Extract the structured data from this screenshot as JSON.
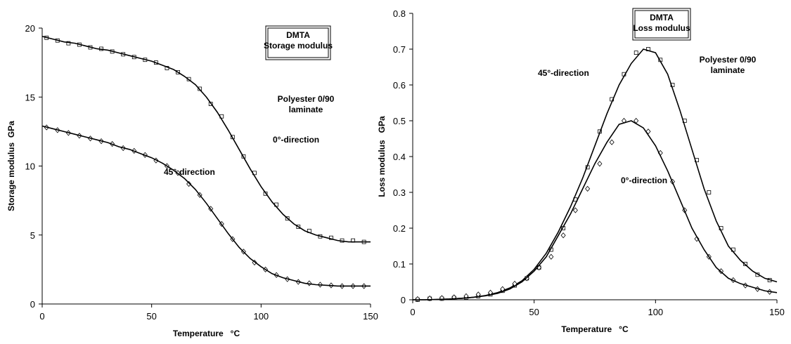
{
  "chart_data": [
    {
      "type": "scatter-fit",
      "xlabel": "Temperature   °C",
      "ylabel": "Storage modulus  GPa",
      "box": [
        "DMTA",
        "Storage modulus"
      ],
      "annotations": [
        "Polyester 0/90",
        "laminate",
        "0°-direction",
        "45°-direction"
      ],
      "xlim": [
        0,
        150
      ],
      "xticks": [
        0,
        50,
        100,
        150
      ],
      "ylim": [
        0,
        20
      ],
      "yticks": [
        0,
        5,
        10,
        15,
        20
      ],
      "series": [
        {
          "marker": "square",
          "color": "#000000",
          "x": [
            2,
            7,
            12,
            17,
            22,
            27,
            32,
            37,
            42,
            47,
            52,
            57,
            62,
            67,
            72,
            77,
            82,
            87,
            92,
            97,
            102,
            107,
            112,
            117,
            122,
            127,
            132,
            137,
            142,
            147
          ],
          "values": [
            19.3,
            19.1,
            18.9,
            18.8,
            18.6,
            18.5,
            18.3,
            18.1,
            17.9,
            17.7,
            17.5,
            17.1,
            16.8,
            16.3,
            15.6,
            14.5,
            13.6,
            12.1,
            10.7,
            9.5,
            8.0,
            7.2,
            6.2,
            5.6,
            5.3,
            4.9,
            4.8,
            4.6,
            4.6,
            4.5
          ]
        },
        {
          "marker": "line",
          "color": "#000000",
          "x": [
            0,
            5,
            10,
            15,
            20,
            25,
            30,
            35,
            40,
            45,
            50,
            55,
            60,
            65,
            70,
            75,
            80,
            85,
            90,
            95,
            100,
            105,
            110,
            115,
            120,
            125,
            130,
            135,
            140,
            145,
            150
          ],
          "values": [
            19.4,
            19.2,
            19.0,
            18.9,
            18.7,
            18.5,
            18.4,
            18.2,
            18.0,
            17.8,
            17.6,
            17.3,
            17.0,
            16.5,
            15.9,
            15.0,
            13.9,
            12.6,
            11.2,
            9.8,
            8.5,
            7.4,
            6.5,
            5.8,
            5.3,
            5.0,
            4.8,
            4.6,
            4.5,
            4.5,
            4.5
          ]
        },
        {
          "marker": "diamond",
          "color": "#000000",
          "x": [
            2,
            7,
            12,
            17,
            22,
            27,
            32,
            37,
            42,
            47,
            52,
            57,
            62,
            67,
            72,
            77,
            82,
            87,
            92,
            97,
            102,
            107,
            112,
            117,
            122,
            127,
            132,
            137,
            142,
            147
          ],
          "values": [
            12.8,
            12.6,
            12.4,
            12.2,
            12.0,
            11.8,
            11.6,
            11.3,
            11.1,
            10.8,
            10.4,
            10.0,
            9.5,
            8.7,
            7.9,
            6.9,
            5.8,
            4.7,
            3.8,
            3.0,
            2.5,
            2.1,
            1.8,
            1.6,
            1.5,
            1.4,
            1.35,
            1.3,
            1.3,
            1.3
          ]
        },
        {
          "marker": "line",
          "color": "#000000",
          "x": [
            0,
            5,
            10,
            15,
            20,
            25,
            30,
            35,
            40,
            45,
            50,
            55,
            60,
            65,
            70,
            75,
            80,
            85,
            90,
            95,
            100,
            105,
            110,
            115,
            120,
            125,
            130,
            135,
            140,
            145,
            150
          ],
          "values": [
            12.9,
            12.7,
            12.5,
            12.3,
            12.1,
            11.9,
            11.7,
            11.4,
            11.2,
            10.9,
            10.6,
            10.2,
            9.7,
            9.1,
            8.3,
            7.3,
            6.2,
            5.1,
            4.1,
            3.3,
            2.7,
            2.2,
            1.9,
            1.7,
            1.5,
            1.4,
            1.35,
            1.3,
            1.3,
            1.3,
            1.3
          ]
        }
      ]
    },
    {
      "type": "scatter-fit",
      "xlabel": "Temperature   °C",
      "ylabel": "Loss modulus   GPa",
      "box": [
        "DMTA",
        "Loss modulus"
      ],
      "annotations": [
        "Polyester 0/90",
        "laminate",
        "45°-direction",
        "0°-direction"
      ],
      "xlim": [
        0,
        150
      ],
      "xticks": [
        0,
        50,
        100,
        150
      ],
      "ylim": [
        0,
        0.8
      ],
      "yticks": [
        0,
        0.1,
        0.2,
        0.3,
        0.4,
        0.5,
        0.6,
        0.7,
        0.8
      ],
      "series": [
        {
          "marker": "square",
          "color": "#000000",
          "x": [
            2,
            7,
            12,
            17,
            22,
            27,
            32,
            37,
            42,
            47,
            52,
            57,
            62,
            67,
            72,
            77,
            82,
            87,
            92,
            97,
            102,
            107,
            112,
            117,
            122,
            127,
            132,
            137,
            142,
            147
          ],
          "values": [
            0.0,
            0.003,
            0.003,
            0.005,
            0.006,
            0.01,
            0.015,
            0.025,
            0.04,
            0.06,
            0.09,
            0.14,
            0.2,
            0.28,
            0.37,
            0.47,
            0.56,
            0.63,
            0.69,
            0.7,
            0.67,
            0.6,
            0.5,
            0.39,
            0.3,
            0.2,
            0.14,
            0.1,
            0.07,
            0.055
          ]
        },
        {
          "marker": "line",
          "color": "#000000",
          "x": [
            0,
            5,
            10,
            15,
            20,
            25,
            30,
            35,
            40,
            45,
            50,
            55,
            60,
            65,
            70,
            75,
            80,
            85,
            90,
            95,
            100,
            105,
            110,
            115,
            120,
            125,
            130,
            135,
            140,
            145,
            150
          ],
          "values": [
            0,
            0,
            0.001,
            0.002,
            0.004,
            0.007,
            0.012,
            0.02,
            0.033,
            0.053,
            0.085,
            0.13,
            0.19,
            0.26,
            0.34,
            0.43,
            0.52,
            0.6,
            0.66,
            0.7,
            0.69,
            0.63,
            0.53,
            0.42,
            0.31,
            0.22,
            0.15,
            0.11,
            0.08,
            0.06,
            0.05
          ]
        },
        {
          "marker": "diamond",
          "color": "#000000",
          "x": [
            2,
            7,
            12,
            17,
            22,
            27,
            32,
            37,
            42,
            47,
            52,
            57,
            62,
            67,
            72,
            77,
            82,
            87,
            92,
            97,
            102,
            107,
            112,
            117,
            122,
            127,
            132,
            137,
            142,
            147
          ],
          "values": [
            0.002,
            0.004,
            0.005,
            0.007,
            0.01,
            0.015,
            0.02,
            0.03,
            0.045,
            0.06,
            0.09,
            0.12,
            0.18,
            0.25,
            0.31,
            0.38,
            0.44,
            0.5,
            0.5,
            0.47,
            0.41,
            0.33,
            0.25,
            0.17,
            0.12,
            0.08,
            0.055,
            0.04,
            0.03,
            0.022
          ]
        },
        {
          "marker": "line",
          "color": "#000000",
          "x": [
            0,
            5,
            10,
            15,
            20,
            25,
            30,
            35,
            40,
            45,
            50,
            55,
            60,
            65,
            70,
            75,
            80,
            85,
            90,
            95,
            100,
            105,
            110,
            115,
            120,
            125,
            130,
            135,
            140,
            145,
            150
          ],
          "values": [
            0,
            0,
            0.001,
            0.002,
            0.004,
            0.007,
            0.011,
            0.018,
            0.03,
            0.05,
            0.08,
            0.12,
            0.18,
            0.24,
            0.31,
            0.38,
            0.44,
            0.49,
            0.5,
            0.48,
            0.43,
            0.36,
            0.28,
            0.2,
            0.14,
            0.09,
            0.06,
            0.045,
            0.035,
            0.025,
            0.02
          ]
        }
      ]
    }
  ]
}
